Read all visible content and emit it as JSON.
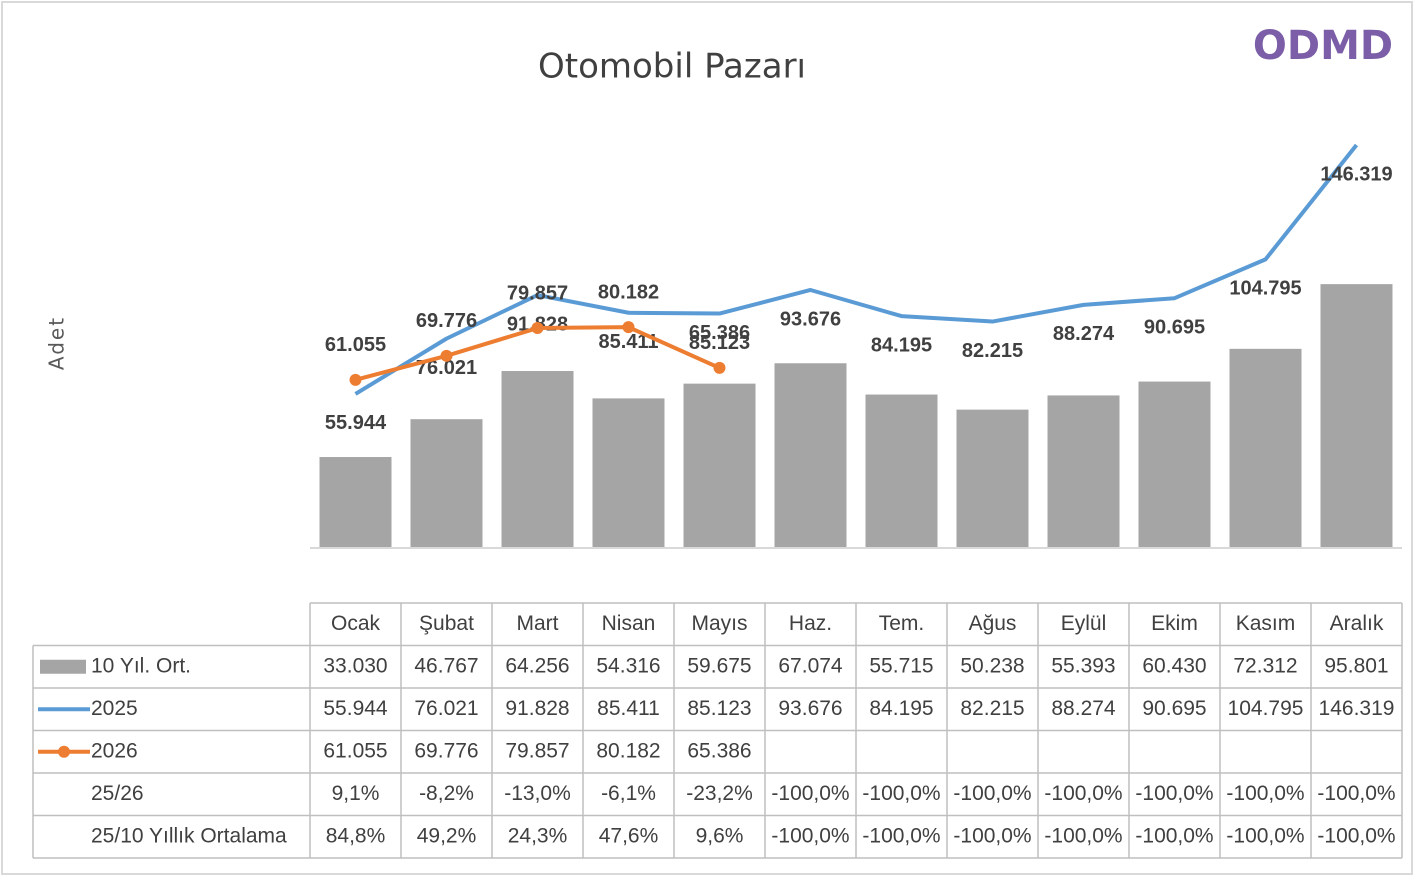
{
  "logo": "ODMD",
  "chart_data": {
    "type": "bar-line",
    "title": "Otomobil Pazarı",
    "y_label": "Adet",
    "categories": [
      "Ocak",
      "Şubat",
      "Mart",
      "Nisan",
      "Mayıs",
      "Haz.",
      "Tem.",
      "Ağus",
      "Eylül",
      "Ekim",
      "Kasım",
      "Aralık"
    ],
    "series": [
      {
        "name": "10 Yıl. Ort.",
        "type": "bar",
        "color": "#a5a5a5",
        "values": [
          33030,
          46767,
          64256,
          54316,
          59675,
          67074,
          55715,
          50238,
          55393,
          60430,
          72312,
          95801
        ],
        "value_labels": [
          "33.030",
          "46.767",
          "64.256",
          "54.316",
          "59.675",
          "67.074",
          "55.715",
          "50.238",
          "55.393",
          "60.430",
          "72.312",
          "95.801"
        ]
      },
      {
        "name": "2025",
        "type": "line",
        "color": "#5b9bd5",
        "values": [
          55944,
          76021,
          91828,
          85411,
          85123,
          93676,
          84195,
          82215,
          88274,
          90695,
          104795,
          146319
        ],
        "value_labels": [
          "55.944",
          "76.021",
          "91.828",
          "85.411",
          "85.123",
          "93.676",
          "84.195",
          "82.215",
          "88.274",
          "90.695",
          "104.795",
          "146.319"
        ]
      },
      {
        "name": "2026",
        "type": "line",
        "color": "#ed7d31",
        "marker": "circle",
        "values": [
          61055,
          69776,
          79857,
          80182,
          65386,
          null,
          null,
          null,
          null,
          null,
          null,
          null
        ],
        "value_labels": [
          "61.055",
          "69.776",
          "79.857",
          "80.182",
          "65.386",
          null,
          null,
          null,
          null,
          null,
          null,
          null
        ]
      }
    ],
    "rows": [
      {
        "name": "25/26",
        "values": [
          9.1,
          -8.2,
          -13.0,
          -6.1,
          -23.2,
          -100.0,
          -100.0,
          -100.0,
          -100.0,
          -100.0,
          -100.0,
          -100.0
        ],
        "value_labels": [
          "9,1%",
          "-8,2%",
          "-13,0%",
          "-6,1%",
          "-23,2%",
          "-100,0%",
          "-100,0%",
          "-100,0%",
          "-100,0%",
          "-100,0%",
          "-100,0%",
          "-100,0%"
        ]
      },
      {
        "name": "25/10 Yıllık Ortalama",
        "values": [
          84.8,
          49.2,
          24.3,
          47.6,
          9.6,
          -100.0,
          -100.0,
          -100.0,
          -100.0,
          -100.0,
          -100.0,
          -100.0
        ],
        "value_labels": [
          "84,8%",
          "49,2%",
          "24,3%",
          "47,6%",
          "9,6%",
          "-100,0%",
          "-100,0%",
          "-100,0%",
          "-100,0%",
          "-100,0%",
          "-100,0%",
          "-100,0%"
        ]
      }
    ]
  }
}
